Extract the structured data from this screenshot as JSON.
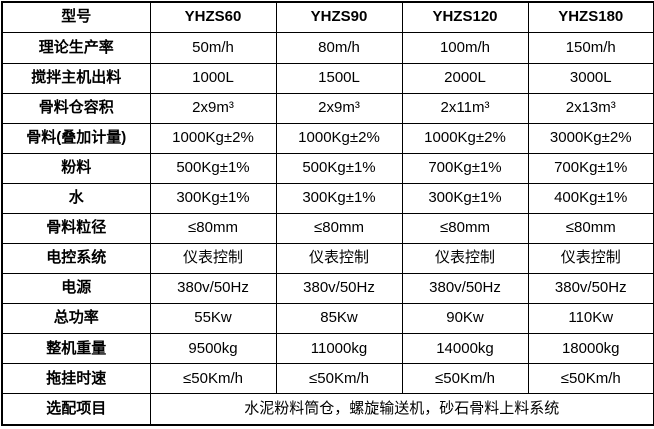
{
  "chart_data": {
    "type": "table",
    "title": "",
    "columns": [
      "型号",
      "YHZS60",
      "YHZS90",
      "YHZS120",
      "YHZS180"
    ],
    "rows": [
      [
        "理论生产率",
        "50m/h",
        "80m/h",
        "100m/h",
        "150m/h"
      ],
      [
        "搅拌主机出料",
        "1000L",
        "1500L",
        "2000L",
        "3000L"
      ],
      [
        "骨料仓容积",
        "2x9m³",
        "2x9m³",
        "2x11m³",
        "2x13m³"
      ],
      [
        "骨料(叠加计量)",
        "1000Kg±2%",
        "1000Kg±2%",
        "1000Kg±2%",
        "3000Kg±2%"
      ],
      [
        "粉料",
        "500Kg±1%",
        "500Kg±1%",
        "700Kg±1%",
        "700Kg±1%"
      ],
      [
        "水",
        "300Kg±1%",
        "300Kg±1%",
        "300Kg±1%",
        "400Kg±1%"
      ],
      [
        "骨料粒径",
        "≤80mm",
        "≤80mm",
        "≤80mm",
        "≤80mm"
      ],
      [
        "电控系统",
        "仪表控制",
        "仪表控制",
        "仪表控制",
        "仪表控制"
      ],
      [
        "电源",
        "380v/50Hz",
        "380v/50Hz",
        "380v/50Hz",
        "380v/50Hz"
      ],
      [
        "总功率",
        "55Kw",
        "85Kw",
        "90Kw",
        "110Kw"
      ],
      [
        "整机重量",
        "9500kg",
        "11000kg",
        "14000kg",
        "18000kg"
      ],
      [
        "拖挂时速",
        "≤50Km/h",
        "≤50Km/h",
        "≤50Km/h",
        "≤50Km/h"
      ],
      [
        "选配项目",
        "水泥粉料筒仓，螺旋输送机，砂石骨料上料系统"
      ]
    ],
    "layout": {
      "grid": true,
      "border_color": "#000000",
      "header_row_bold": true,
      "label_column_bold": true,
      "footer_row_colspan": 4
    }
  }
}
